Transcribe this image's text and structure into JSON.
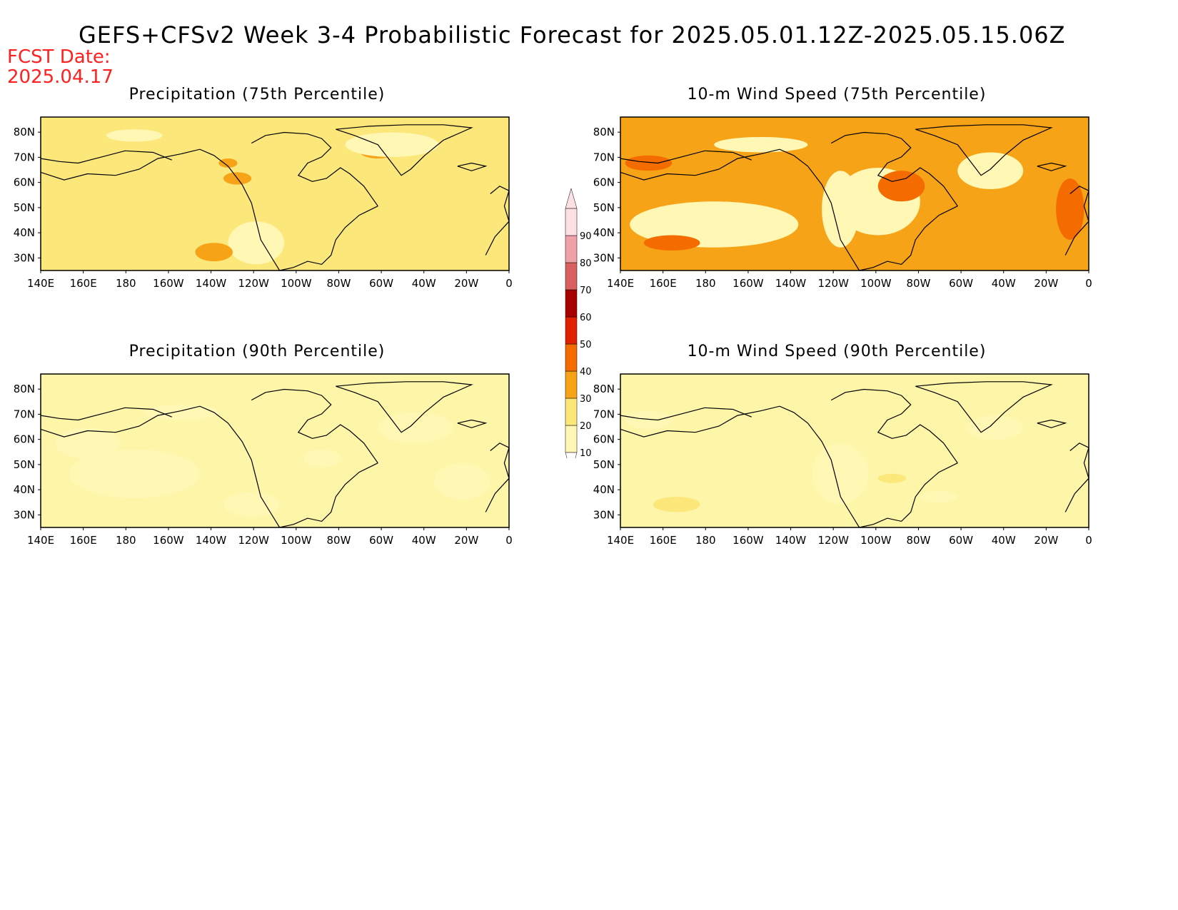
{
  "header": {
    "title": "GEFS+CFSv2 Week 3-4 Probabilistic Forecast for 2025.05.01.12Z-2025.05.15.06Z",
    "fcst_date_label": "FCST Date:",
    "fcst_date": "2025.04.17"
  },
  "axes": {
    "x_ticks": [
      "140E",
      "160E",
      "180",
      "160W",
      "140W",
      "120W",
      "100W",
      "80W",
      "60W",
      "40W",
      "20W",
      "0"
    ],
    "y_ticks": [
      "80N",
      "70N",
      "60N",
      "50N",
      "40N",
      "30N"
    ]
  },
  "panels": [
    {
      "id": "precip75",
      "title": "Precipitation (75th Percentile)",
      "base_color": "#fce77a"
    },
    {
      "id": "wind75",
      "title": "10-m Wind Speed (75th Percentile)",
      "base_color": "#f7a318"
    },
    {
      "id": "precip90",
      "title": "Precipitation (90th Percentile)",
      "base_color": "#fdf5a8"
    },
    {
      "id": "wind90",
      "title": "10-m Wind Speed (90th Percentile)",
      "base_color": "#fdf5a8"
    }
  ],
  "colorbar": {
    "levels": [
      10,
      20,
      30,
      40,
      50,
      60,
      70,
      80,
      90
    ],
    "labels": [
      "10",
      "20",
      "30",
      "40",
      "50",
      "60",
      "70",
      "80",
      "90"
    ],
    "colors": [
      "#fff7b3",
      "#fce77a",
      "#f7a318",
      "#f46c00",
      "#e12000",
      "#a70000",
      "#d96060",
      "#f0a0a8",
      "#fde0e4"
    ]
  }
}
